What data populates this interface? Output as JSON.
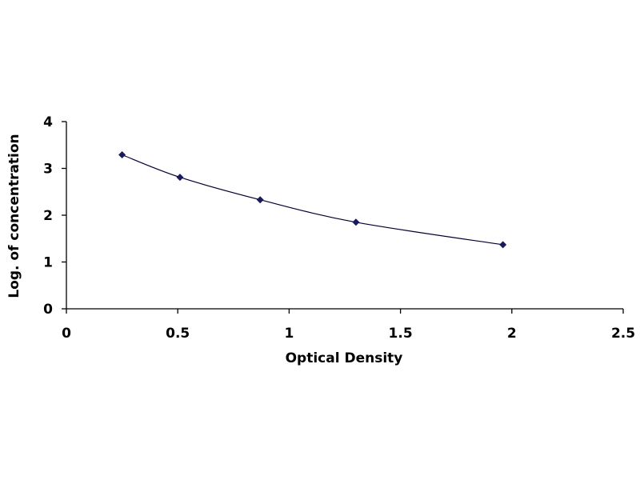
{
  "chart_data": {
    "type": "scatter",
    "title": "",
    "xlabel": "Optical Density",
    "ylabel": "Log. of concentration",
    "xlim": [
      0,
      2.5
    ],
    "ylim": [
      0,
      4
    ],
    "x_ticks": [
      "0",
      "0.5",
      "1",
      "1.5",
      "2",
      "2.5"
    ],
    "y_ticks": [
      "0",
      "1",
      "2",
      "3",
      "4"
    ],
    "grid": false,
    "legend": "none",
    "trendline": "smooth",
    "series": [
      {
        "x": [
          0.25,
          0.51,
          0.87,
          1.3,
          1.96
        ],
        "y": [
          3.29,
          2.81,
          2.33,
          1.85,
          1.37
        ],
        "color": "#1a1a5e",
        "marker": "diamond"
      }
    ]
  }
}
